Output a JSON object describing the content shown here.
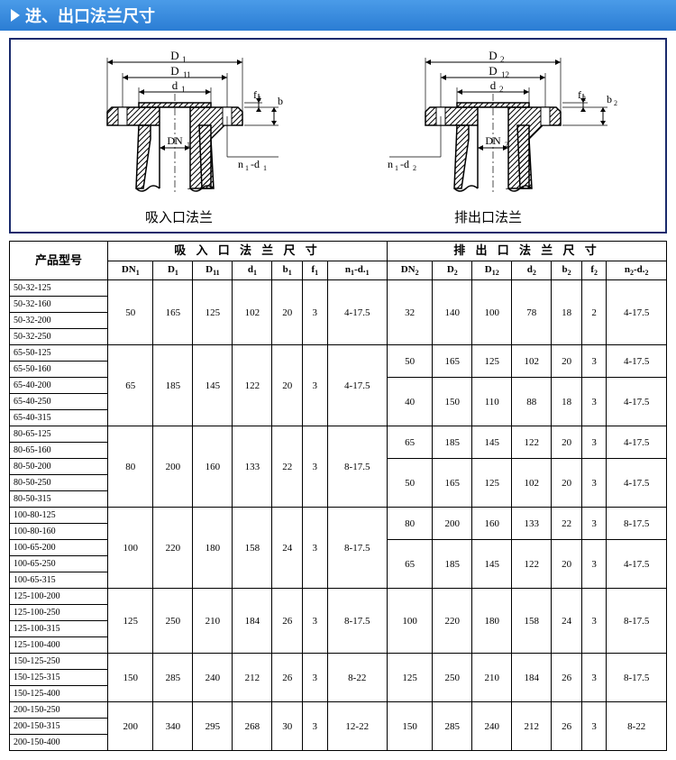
{
  "header": {
    "title": "进、出口法兰尺寸"
  },
  "diagrams": {
    "frame_border_color": "#1a2a6c",
    "font_color": "#000000",
    "caption_fontsize": 15,
    "inlet": {
      "caption": "吸入口法兰",
      "labels": {
        "D1": "D₁",
        "D11": "D₁₁",
        "d1": "d₁",
        "DN1": "DN₁",
        "f1": "f₁",
        "b": "b",
        "n1d1": "n₁-d₁"
      },
      "colors": {
        "stroke": "#000000",
        "hatch": "#000000",
        "dim_line": "#000000"
      }
    },
    "outlet": {
      "caption": "排出口法兰",
      "labels": {
        "D2": "D₂",
        "D12": "D₁₂",
        "d2": "d₂",
        "DN2": "DN₂",
        "f2": "f₂",
        "b2": "b₂",
        "n1d2": "n₁-d₂"
      },
      "colors": {
        "stroke": "#000000",
        "hatch": "#000000",
        "dim_line": "#000000"
      }
    }
  },
  "table": {
    "header_model": "产品型号",
    "header_inlet": "吸 入 口 法 兰 尺 寸",
    "header_outlet": "排 出 口 法 兰 尺 寸",
    "cols_inlet": [
      "DN₁",
      "D₁",
      "D₁₁",
      "d₁",
      "b₁",
      "f₁",
      "n₁-d.₁"
    ],
    "cols_outlet": [
      "DN₂",
      "D₂",
      "D₁₂",
      "d₂",
      "b₂",
      "f₂",
      "n₂-d.₂"
    ],
    "groups": [
      {
        "models": [
          "50-32-125",
          "50-32-160",
          "50-32-200",
          "50-32-250"
        ],
        "inlet": [
          "50",
          "165",
          "125",
          "102",
          "20",
          "3",
          "4-17.5"
        ],
        "outlet_rows": [
          {
            "span": 4,
            "vals": [
              "32",
              "140",
              "100",
              "78",
              "18",
              "2",
              "4-17.5"
            ]
          }
        ]
      },
      {
        "models": [
          "65-50-125",
          "65-50-160",
          "65-40-200",
          "65-40-250",
          "65-40-315"
        ],
        "inlet": [
          "65",
          "185",
          "145",
          "122",
          "20",
          "3",
          "4-17.5"
        ],
        "outlet_rows": [
          {
            "span": 2,
            "vals": [
              "50",
              "165",
              "125",
              "102",
              "20",
              "3",
              "4-17.5"
            ]
          },
          {
            "span": 3,
            "vals": [
              "40",
              "150",
              "110",
              "88",
              "18",
              "3",
              "4-17.5"
            ]
          }
        ]
      },
      {
        "models": [
          "80-65-125",
          "80-65-160",
          "80-50-200",
          "80-50-250",
          "80-50-315"
        ],
        "inlet": [
          "80",
          "200",
          "160",
          "133",
          "22",
          "3",
          "8-17.5"
        ],
        "outlet_rows": [
          {
            "span": 2,
            "vals": [
              "65",
              "185",
              "145",
              "122",
              "20",
              "3",
              "4-17.5"
            ]
          },
          {
            "span": 3,
            "vals": [
              "50",
              "165",
              "125",
              "102",
              "20",
              "3",
              "4-17.5"
            ]
          }
        ]
      },
      {
        "models": [
          "100-80-125",
          "100-80-160",
          "100-65-200",
          "100-65-250",
          "100-65-315"
        ],
        "inlet": [
          "100",
          "220",
          "180",
          "158",
          "24",
          "3",
          "8-17.5"
        ],
        "outlet_rows": [
          {
            "span": 2,
            "vals": [
              "80",
              "200",
              "160",
              "133",
              "22",
              "3",
              "8-17.5"
            ]
          },
          {
            "span": 3,
            "vals": [
              "65",
              "185",
              "145",
              "122",
              "20",
              "3",
              "4-17.5"
            ]
          }
        ]
      },
      {
        "models": [
          "125-100-200",
          "125-100-250",
          "125-100-315",
          "125-100-400"
        ],
        "inlet": [
          "125",
          "250",
          "210",
          "184",
          "26",
          "3",
          "8-17.5"
        ],
        "outlet_rows": [
          {
            "span": 4,
            "vals": [
              "100",
              "220",
              "180",
              "158",
              "24",
              "3",
              "8-17.5"
            ]
          }
        ]
      },
      {
        "models": [
          "150-125-250",
          "150-125-315",
          "150-125-400"
        ],
        "inlet": [
          "150",
          "285",
          "240",
          "212",
          "26",
          "3",
          "8-22"
        ],
        "outlet_rows": [
          {
            "span": 3,
            "vals": [
              "125",
              "250",
              "210",
              "184",
              "26",
              "3",
              "8-17.5"
            ]
          }
        ]
      },
      {
        "models": [
          "200-150-250",
          "200-150-315",
          "200-150-400"
        ],
        "inlet": [
          "200",
          "340",
          "295",
          "268",
          "30",
          "3",
          "12-22"
        ],
        "outlet_rows": [
          {
            "span": 3,
            "vals": [
              "150",
              "285",
              "240",
              "212",
              "26",
              "3",
              "8-22"
            ]
          }
        ]
      }
    ],
    "styling": {
      "border_color": "#000000",
      "font_size": 11,
      "header_font_size": 13,
      "model_font_size": 10
    }
  }
}
